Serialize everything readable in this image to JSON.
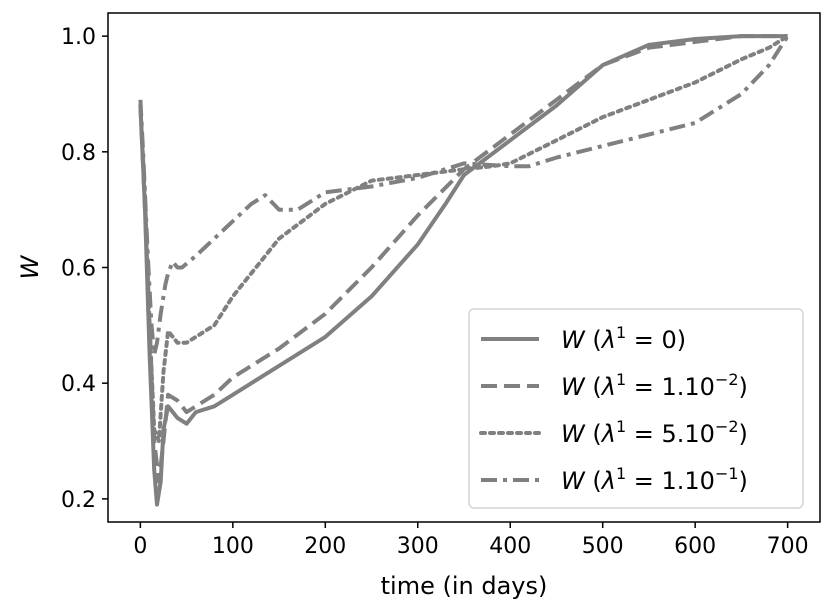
{
  "chart_data": {
    "type": "line",
    "xlabel": "time (in days)",
    "ylabel": "W",
    "xlim": [
      -35,
      735
    ],
    "ylim": [
      0.16,
      1.04
    ],
    "xticks": [
      0,
      100,
      200,
      300,
      400,
      500,
      600,
      700
    ],
    "xtick_labels": [
      "0",
      "100",
      "200",
      "300",
      "400",
      "500",
      "600",
      "700"
    ],
    "yticks": [
      0.2,
      0.4,
      0.6,
      0.8,
      1.0
    ],
    "ytick_labels": [
      "0.2",
      "0.4",
      "0.6",
      "0.8",
      "1.0"
    ],
    "grid": false,
    "legend_position": "lower-right",
    "line_color": "#808080",
    "series": [
      {
        "name": "W (λ¹ = 0)",
        "legend_main": "W (λ",
        "legend_sup": "1",
        "legend_rest": " = 0)",
        "style": "solid",
        "x": [
          0,
          5,
          10,
          15,
          18,
          22,
          25,
          30,
          40,
          50,
          60,
          80,
          100,
          150,
          200,
          250,
          300,
          330,
          350,
          400,
          450,
          500,
          550,
          600,
          650,
          700
        ],
        "y": [
          0.88,
          0.7,
          0.45,
          0.25,
          0.19,
          0.23,
          0.32,
          0.36,
          0.34,
          0.33,
          0.35,
          0.36,
          0.38,
          0.43,
          0.48,
          0.55,
          0.64,
          0.71,
          0.76,
          0.82,
          0.88,
          0.95,
          0.985,
          0.995,
          1.0,
          1.0
        ]
      },
      {
        "name": "W (λ¹ = 1.10⁻²)",
        "legend_main": "W (λ",
        "legend_sup": "1",
        "legend_rest": " = 1.10",
        "legend_exp": "−2",
        "legend_close": ")",
        "style": "dashed",
        "x": [
          0,
          5,
          10,
          15,
          20,
          25,
          30,
          40,
          50,
          60,
          80,
          100,
          150,
          200,
          250,
          300,
          350,
          400,
          450,
          500,
          550,
          600,
          650,
          700
        ],
        "y": [
          0.88,
          0.7,
          0.5,
          0.3,
          0.23,
          0.3,
          0.38,
          0.37,
          0.35,
          0.36,
          0.38,
          0.41,
          0.46,
          0.52,
          0.6,
          0.69,
          0.77,
          0.83,
          0.89,
          0.95,
          0.98,
          0.99,
          1.0,
          1.0
        ]
      },
      {
        "name": "W (λ¹ = 5.10⁻²)",
        "legend_main": "W (λ",
        "legend_sup": "1",
        "legend_rest": " = 5.10",
        "legend_exp": "−2",
        "legend_close": ")",
        "style": "dotted",
        "x": [
          0,
          5,
          10,
          15,
          20,
          25,
          30,
          40,
          50,
          60,
          80,
          100,
          150,
          200,
          250,
          300,
          350,
          380,
          400,
          450,
          500,
          550,
          600,
          650,
          680,
          700
        ],
        "y": [
          0.88,
          0.72,
          0.5,
          0.32,
          0.3,
          0.42,
          0.49,
          0.47,
          0.47,
          0.48,
          0.5,
          0.55,
          0.65,
          0.71,
          0.75,
          0.76,
          0.77,
          0.775,
          0.78,
          0.82,
          0.86,
          0.89,
          0.92,
          0.96,
          0.98,
          1.0
        ]
      },
      {
        "name": "W (λ¹ = 1.10⁻¹)",
        "legend_main": "W (λ",
        "legend_sup": "1",
        "legend_rest": " = 1.10",
        "legend_exp": "−1",
        "legend_close": ")",
        "style": "dashdot",
        "x": [
          0,
          3,
          8,
          12,
          15,
          18,
          22,
          27,
          30,
          35,
          40,
          45,
          60,
          80,
          100,
          120,
          135,
          150,
          170,
          200,
          250,
          300,
          350,
          400,
          420,
          450,
          500,
          550,
          600,
          650,
          680,
          700
        ],
        "y": [
          0.89,
          0.8,
          0.62,
          0.5,
          0.45,
          0.47,
          0.52,
          0.57,
          0.59,
          0.61,
          0.6,
          0.6,
          0.62,
          0.65,
          0.68,
          0.71,
          0.725,
          0.7,
          0.7,
          0.73,
          0.74,
          0.755,
          0.78,
          0.775,
          0.775,
          0.79,
          0.81,
          0.83,
          0.85,
          0.9,
          0.95,
          1.0
        ]
      }
    ]
  }
}
